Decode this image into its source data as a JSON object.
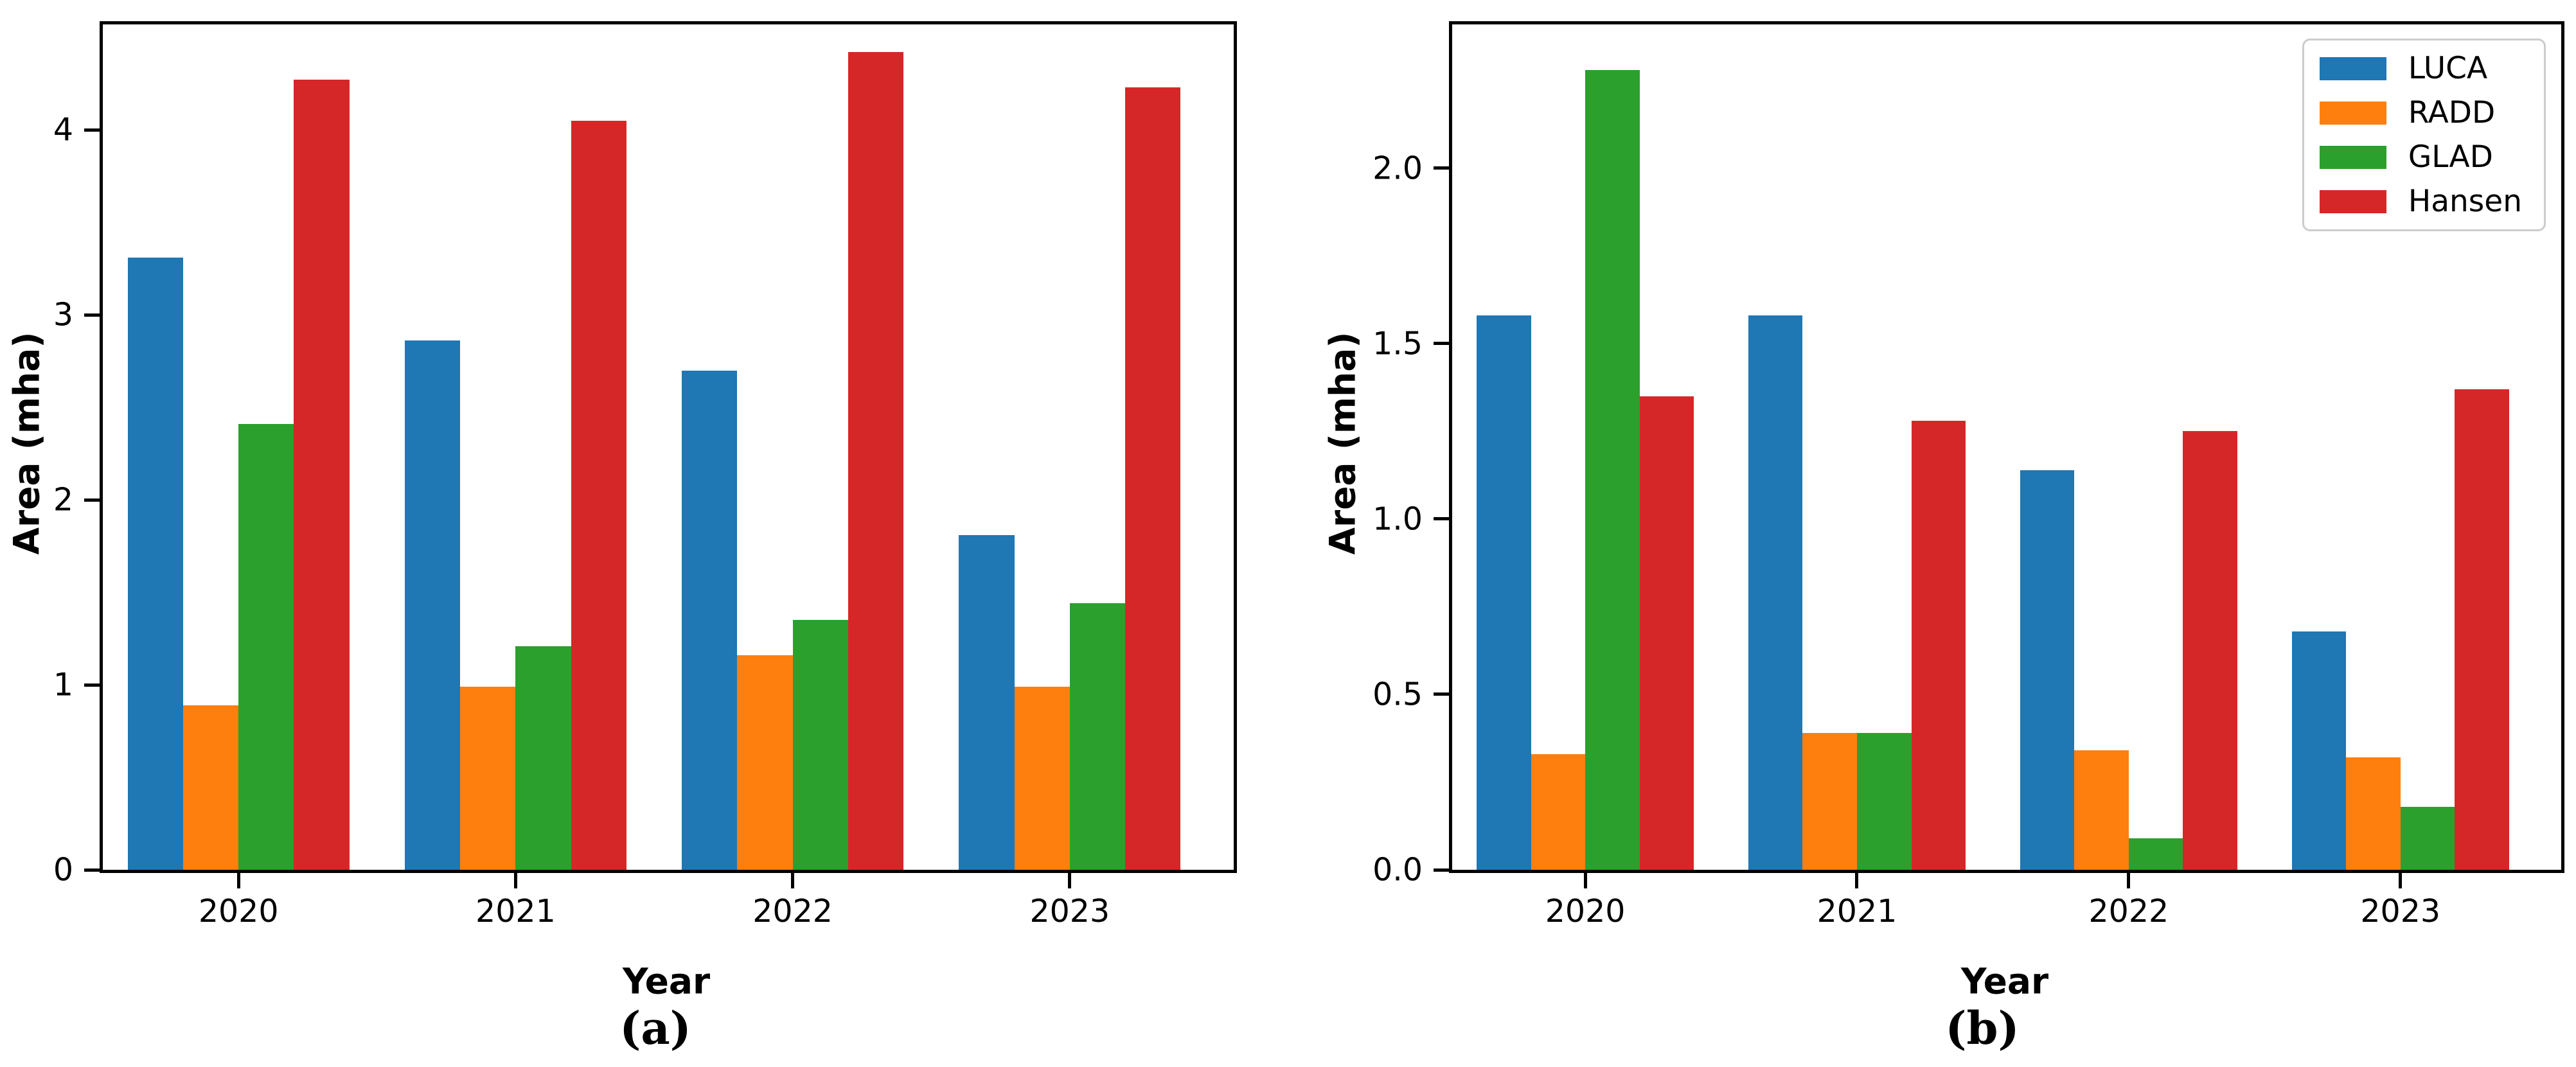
{
  "figure": {
    "background": "#ffffff",
    "axis_color": "#000000",
    "legend_border_color": "#cccccc"
  },
  "colors": {
    "LUCA": "#1f77b4",
    "RADD": "#ff7f0e",
    "GLAD": "#2ca02c",
    "Hansen": "#d62728"
  },
  "chart_data": [
    {
      "id": "a",
      "type": "bar",
      "caption": "(a)",
      "xlabel": "Year",
      "ylabel": "Area (mha)",
      "categories": [
        "2020",
        "2021",
        "2022",
        "2023"
      ],
      "series": [
        {
          "name": "LUCA",
          "color": "#1f77b4",
          "values": [
            3.31,
            2.86,
            2.7,
            1.81
          ]
        },
        {
          "name": "RADD",
          "color": "#ff7f0e",
          "values": [
            0.89,
            0.99,
            1.16,
            0.99
          ]
        },
        {
          "name": "GLAD",
          "color": "#2ca02c",
          "values": [
            2.41,
            1.21,
            1.35,
            1.44
          ]
        },
        {
          "name": "Hansen",
          "color": "#d62728",
          "values": [
            4.27,
            4.05,
            4.42,
            4.23
          ]
        }
      ],
      "ylim": [
        0,
        4.57
      ],
      "yticks": [
        0,
        1,
        2,
        3,
        4
      ],
      "ytick_labels": [
        "0",
        "1",
        "2",
        "3",
        "4"
      ],
      "grid": false,
      "legend": {
        "visible": false
      }
    },
    {
      "id": "b",
      "type": "bar",
      "caption": "(b)",
      "xlabel": "Year",
      "ylabel": "Area (mha)",
      "categories": [
        "2020",
        "2021",
        "2022",
        "2023"
      ],
      "series": [
        {
          "name": "LUCA",
          "color": "#1f77b4",
          "values": [
            1.58,
            1.58,
            1.14,
            0.68
          ]
        },
        {
          "name": "RADD",
          "color": "#ff7f0e",
          "values": [
            0.33,
            0.39,
            0.34,
            0.32
          ]
        },
        {
          "name": "GLAD",
          "color": "#2ca02c",
          "values": [
            2.28,
            0.39,
            0.09,
            0.18
          ]
        },
        {
          "name": "Hansen",
          "color": "#d62728",
          "values": [
            1.35,
            1.28,
            1.25,
            1.37
          ]
        }
      ],
      "ylim": [
        0,
        2.41
      ],
      "yticks": [
        0,
        0.5,
        1,
        1.5,
        2
      ],
      "ytick_labels": [
        "0.0",
        "0.5",
        "1.0",
        "1.5",
        "2.0"
      ],
      "grid": false,
      "legend": {
        "visible": true,
        "position": "upper right",
        "entries": [
          "LUCA",
          "RADD",
          "GLAD",
          "Hansen"
        ]
      }
    }
  ]
}
